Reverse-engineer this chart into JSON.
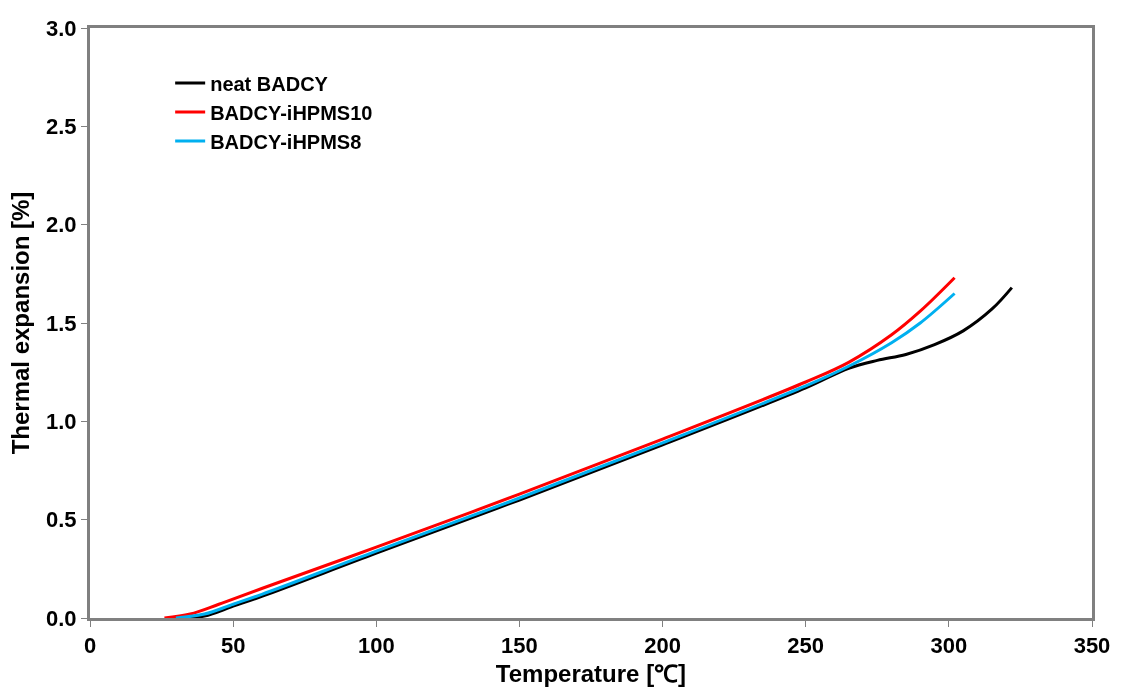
{
  "chart_data": {
    "type": "line",
    "xlabel": "Temperature [℃]",
    "ylabel": "Thermal expansion [%]",
    "xlim": [
      0,
      350
    ],
    "xticks": [
      0,
      50,
      100,
      150,
      200,
      250,
      300,
      350
    ],
    "ylim": [
      0,
      3
    ],
    "yticks": [
      {
        "value": 0,
        "label": "0.0"
      },
      {
        "value": 0.5,
        "label": "0.5"
      },
      {
        "value": 1,
        "label": "1.0"
      },
      {
        "value": 1.5,
        "label": "1.5"
      },
      {
        "value": 2,
        "label": "2.0"
      },
      {
        "value": 2.5,
        "label": "2.5"
      },
      {
        "value": 3,
        "label": "3.0"
      }
    ],
    "legend": "top left",
    "marker": "none",
    "line_style": "solid",
    "series": [
      {
        "name": "neat BADCY",
        "color": "#000000",
        "x": [
          32,
          40,
          50,
          60,
          100,
          150,
          200,
          250,
          265,
          275,
          285,
          295,
          305,
          315,
          322
        ],
        "values": [
          0,
          0.01,
          0.06,
          0.11,
          0.33,
          0.6,
          0.88,
          1.17,
          1.27,
          1.31,
          1.34,
          1.39,
          1.46,
          1.57,
          1.68
        ]
      },
      {
        "name": "BADCY-iHPMS10",
        "color": "#ff0000",
        "x": [
          26,
          35,
          45,
          60,
          100,
          150,
          200,
          250,
          265,
          280,
          290,
          302
        ],
        "values": [
          0,
          0.02,
          0.07,
          0.15,
          0.36,
          0.63,
          0.91,
          1.2,
          1.3,
          1.44,
          1.56,
          1.73
        ]
      },
      {
        "name": "BADCY-iHPMS8",
        "color": "#00b0f0",
        "x": [
          30,
          40,
          50,
          60,
          100,
          150,
          200,
          250,
          265,
          280,
          290,
          302
        ],
        "values": [
          0,
          0.02,
          0.07,
          0.12,
          0.34,
          0.61,
          0.89,
          1.18,
          1.28,
          1.4,
          1.5,
          1.65
        ]
      }
    ]
  }
}
